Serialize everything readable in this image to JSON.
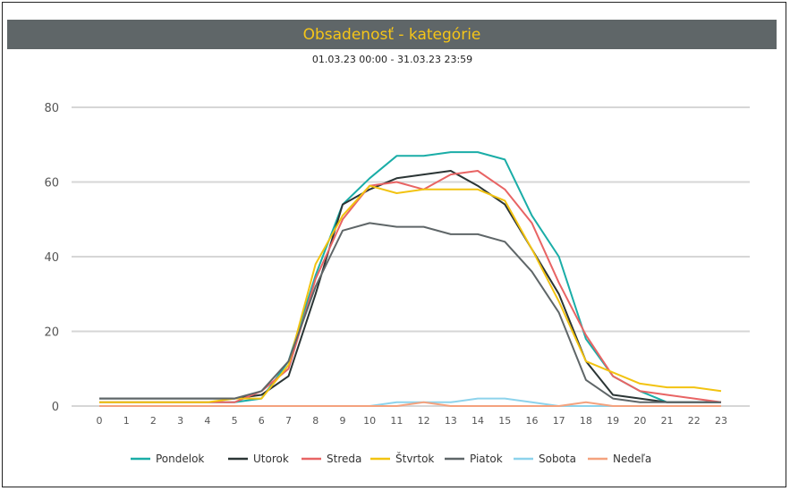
{
  "chart_data": {
    "type": "line",
    "title": "Obsadenosť - kategórie",
    "subtitle": "01.03.23 00:00 - 31.03.23 23:59",
    "xlabel": "",
    "ylabel": "",
    "ylim": [
      0,
      80
    ],
    "yticks": [
      0,
      20,
      40,
      60,
      80
    ],
    "x": [
      0,
      1,
      2,
      3,
      4,
      5,
      6,
      7,
      8,
      9,
      10,
      11,
      12,
      13,
      14,
      15,
      16,
      17,
      18,
      19,
      20,
      21,
      22,
      23
    ],
    "legend_position": "bottom",
    "series": [
      {
        "name": "Pondelok",
        "color": "#1aada7",
        "values": [
          1,
          1,
          1,
          1,
          1,
          1,
          2,
          12,
          35,
          54,
          61,
          67,
          67,
          68,
          68,
          66,
          51,
          40,
          18,
          8,
          4,
          1,
          1,
          1
        ]
      },
      {
        "name": "Utorok",
        "color": "#2b3535",
        "values": [
          2,
          2,
          2,
          2,
          2,
          2,
          3,
          8,
          30,
          54,
          58,
          61,
          62,
          63,
          59,
          54,
          42,
          30,
          12,
          3,
          2,
          1,
          1,
          1
        ]
      },
      {
        "name": "Streda",
        "color": "#e86464",
        "values": [
          1,
          1,
          1,
          1,
          1,
          1,
          4,
          10,
          34,
          50,
          59,
          60,
          58,
          62,
          63,
          58,
          49,
          33,
          19,
          8,
          4,
          3,
          2,
          1
        ]
      },
      {
        "name": "Štvrtok",
        "color": "#f2c311",
        "values": [
          1,
          1,
          1,
          1,
          1,
          2,
          2,
          11,
          38,
          51,
          59,
          57,
          58,
          58,
          58,
          55,
          42,
          28,
          12,
          9,
          6,
          5,
          5,
          4
        ]
      },
      {
        "name": "Piatok",
        "color": "#5f6668",
        "values": [
          2,
          2,
          2,
          2,
          2,
          2,
          4,
          12,
          32,
          47,
          49,
          48,
          48,
          46,
          46,
          44,
          36,
          25,
          7,
          2,
          1,
          1,
          1,
          1
        ]
      },
      {
        "name": "Sobota",
        "color": "#8dd3ec",
        "values": [
          0,
          0,
          0,
          0,
          0,
          0,
          0,
          0,
          0,
          0,
          0,
          1,
          1,
          1,
          2,
          2,
          1,
          0,
          0,
          0,
          0,
          0,
          0,
          0
        ]
      },
      {
        "name": "Nedeľa",
        "color": "#f4a27e",
        "values": [
          0,
          0,
          0,
          0,
          0,
          0,
          0,
          0,
          0,
          0,
          0,
          0,
          1,
          0,
          0,
          0,
          0,
          0,
          1,
          0,
          0,
          0,
          0,
          0
        ]
      }
    ]
  }
}
